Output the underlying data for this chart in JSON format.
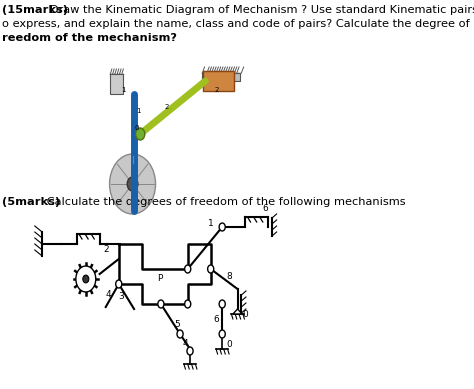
{
  "bg_color": "#ffffff",
  "fig_width": 4.74,
  "fig_height": 3.89,
  "dpi": 100,
  "text1_bold": "(15marks)",
  "text1_rest": " Draw the Kinematic Diagram of Mechanism ? Use standard Kinematic pairs",
  "text2": "o express, and explain the name, class and code of pairs? Calculate the degree of",
  "text3_bold": "reedom of the mechanism?",
  "text4_bold": "(5marks)",
  "text4_rest": " Calculate the degrees of freedom of the following mechanisms",
  "fontsize": 8.2
}
